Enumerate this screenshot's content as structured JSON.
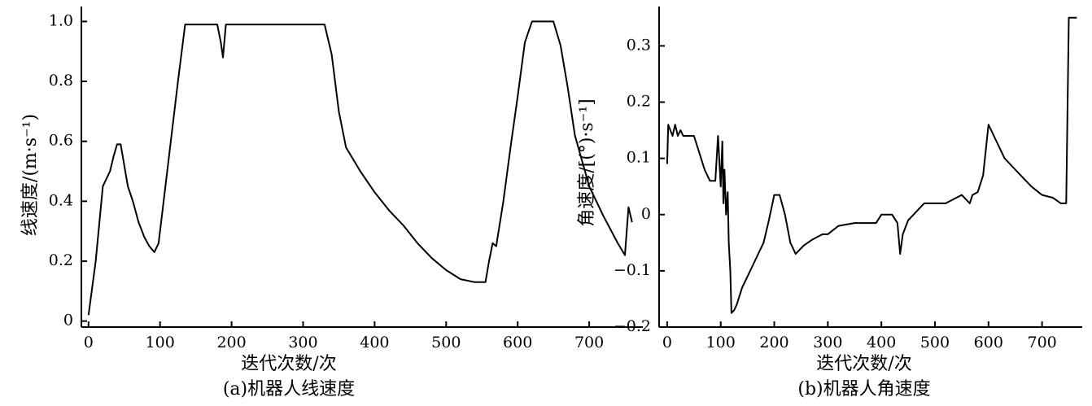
{
  "chart_data": [
    {
      "type": "line",
      "xlabel": "迭代次数/次",
      "ylabel": "线速度/(m·s⁻¹)",
      "caption": "(a)机器人线速度",
      "xlim": [
        -10,
        775
      ],
      "ylim": [
        -0.02,
        1.05
      ],
      "xticks": [
        0,
        100,
        200,
        300,
        400,
        500,
        600,
        700
      ],
      "yticks": [
        0,
        0.2,
        0.4,
        0.6,
        0.8,
        1.0
      ],
      "ytick_labels": [
        "0",
        "0.2",
        "0.4",
        "0.6",
        "0.8",
        "1.0"
      ],
      "grid": false,
      "x": [
        0,
        10,
        20,
        30,
        35,
        40,
        45,
        50,
        55,
        62,
        70,
        78,
        85,
        92,
        98,
        105,
        115,
        125,
        135,
        165,
        180,
        185,
        188,
        192,
        200,
        240,
        330,
        340,
        350,
        360,
        380,
        400,
        420,
        440,
        460,
        480,
        500,
        520,
        540,
        555,
        560,
        565,
        570,
        580,
        590,
        600,
        610,
        620,
        650,
        660,
        670,
        680,
        700,
        720,
        740,
        750,
        755,
        760
      ],
      "y": [
        0.02,
        0.2,
        0.45,
        0.5,
        0.55,
        0.59,
        0.59,
        0.52,
        0.45,
        0.4,
        0.33,
        0.28,
        0.25,
        0.23,
        0.26,
        0.4,
        0.6,
        0.8,
        0.99,
        0.99,
        0.99,
        0.93,
        0.88,
        0.99,
        0.99,
        0.99,
        0.99,
        0.89,
        0.7,
        0.58,
        0.5,
        0.43,
        0.37,
        0.32,
        0.26,
        0.21,
        0.17,
        0.14,
        0.13,
        0.13,
        0.2,
        0.26,
        0.25,
        0.4,
        0.58,
        0.75,
        0.93,
        1.0,
        1.0,
        0.92,
        0.78,
        0.62,
        0.45,
        0.35,
        0.26,
        0.22,
        0.38,
        0.33
      ]
    },
    {
      "type": "line",
      "xlabel": "迭代次数/次",
      "ylabel": "角速度/[(°)·s⁻¹]",
      "caption": "(b)机器人角速度",
      "xlim": [
        -15,
        775
      ],
      "ylim": [
        -0.2,
        0.37
      ],
      "xticks": [
        0,
        100,
        200,
        300,
        400,
        500,
        600,
        700
      ],
      "yticks": [
        -0.2,
        -0.1,
        0,
        0.1,
        0.2,
        0.3
      ],
      "ytick_labels": [
        "−0.2",
        "−0.1",
        "0",
        "0.1",
        "0.2",
        "0.3"
      ],
      "grid": false,
      "x": [
        0,
        2,
        10,
        15,
        20,
        25,
        30,
        50,
        60,
        70,
        80,
        90,
        95,
        100,
        103,
        105,
        107,
        110,
        113,
        115,
        118,
        120,
        125,
        130,
        140,
        150,
        160,
        170,
        180,
        190,
        200,
        210,
        220,
        230,
        240,
        255,
        270,
        290,
        300,
        320,
        350,
        390,
        400,
        420,
        430,
        435,
        440,
        450,
        460,
        470,
        480,
        500,
        520,
        550,
        565,
        570,
        580,
        590,
        600,
        610,
        620,
        630,
        640,
        650,
        660,
        670,
        680,
        700,
        720,
        735,
        745,
        750,
        765
      ],
      "y": [
        0.09,
        0.16,
        0.14,
        0.16,
        0.14,
        0.15,
        0.14,
        0.14,
        0.11,
        0.08,
        0.06,
        0.06,
        0.14,
        0.05,
        0.13,
        0.02,
        0.08,
        0.0,
        0.04,
        -0.05,
        -0.1,
        -0.175,
        -0.17,
        -0.16,
        -0.13,
        -0.11,
        -0.09,
        -0.07,
        -0.05,
        -0.01,
        0.035,
        0.035,
        0.0,
        -0.05,
        -0.07,
        -0.055,
        -0.045,
        -0.035,
        -0.035,
        -0.02,
        -0.015,
        -0.015,
        0.0,
        0.0,
        -0.015,
        -0.07,
        -0.035,
        -0.01,
        0.0,
        0.01,
        0.02,
        0.02,
        0.02,
        0.035,
        0.02,
        0.035,
        0.04,
        0.07,
        0.16,
        0.14,
        0.12,
        0.1,
        0.09,
        0.08,
        0.07,
        0.06,
        0.05,
        0.035,
        0.03,
        0.02,
        0.02,
        0.35,
        0.35
      ]
    }
  ]
}
